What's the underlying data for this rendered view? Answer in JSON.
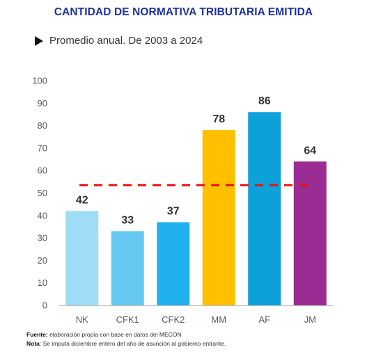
{
  "header": {
    "title": "CANTIDAD DE NORMATIVA TRIBUTARIA EMITIDA",
    "subtitle": "Promedio anual. De 2003 a 2024"
  },
  "footer": {
    "source_label": "Fuente:",
    "source_text": " elaboración propia con base en datos del MECON",
    "note_label": "Nota",
    "note_text": ": Se imputa diciembre entero del año de asunción al gobierno entrante."
  },
  "chart_data": {
    "type": "bar",
    "categories": [
      "NK",
      "CFK1",
      "CFK2",
      "MM",
      "AF",
      "JM"
    ],
    "values": [
      42,
      33,
      37,
      78,
      86,
      64
    ],
    "colors": [
      "#9fdcf7",
      "#66c9f1",
      "#21b0ee",
      "#ffc000",
      "#0ea0d9",
      "#9b2c94"
    ],
    "average_line": {
      "value": 53.5,
      "color": "#e81010",
      "style": "dashed"
    },
    "ylim": [
      0,
      100
    ],
    "yticks": [
      0,
      10,
      20,
      30,
      40,
      50,
      60,
      70,
      80,
      90,
      100
    ],
    "grid": false,
    "legend": "none"
  }
}
